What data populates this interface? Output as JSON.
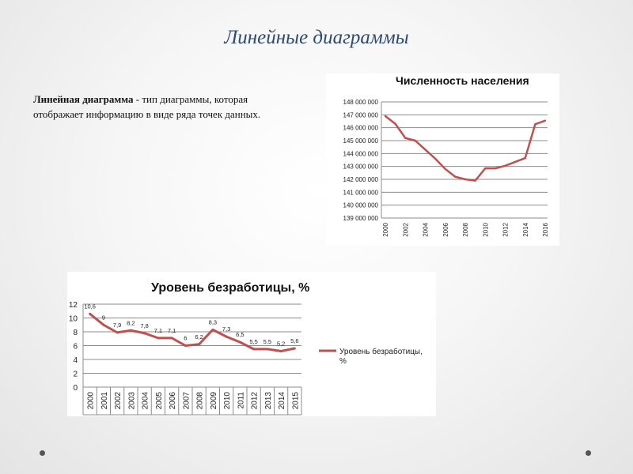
{
  "slide": {
    "title": "Линейные диаграммы",
    "text_term": "Линейная диаграмма",
    "text_rest": " - тип диаграммы, которая отображает информацию в виде ряда точек данных."
  },
  "colors": {
    "line": "#c0504d",
    "title": "#2e4a72"
  },
  "chart_data": [
    {
      "type": "line",
      "title": "Численность населения",
      "x": [
        "2000",
        "2001",
        "2002",
        "2003",
        "2004",
        "2005",
        "2006",
        "2007",
        "2008",
        "2009",
        "2010",
        "2011",
        "2012",
        "2013",
        "2014",
        "2015",
        "2016"
      ],
      "x_tick_labels": [
        "2000",
        "2002",
        "2004",
        "2006",
        "2008",
        "2010",
        "2012",
        "2014",
        "2016"
      ],
      "series": [
        {
          "values": [
            146900000,
            146300000,
            145200000,
            145000000,
            144300000,
            143600000,
            142800000,
            142200000,
            142000000,
            141900000,
            142850000,
            142850000,
            143050000,
            143350000,
            143650000,
            146270000,
            146550000
          ]
        }
      ],
      "ylim": [
        139000000,
        148000000
      ],
      "y_ticks": [
        "148 000 000",
        "147 000 000",
        "146 000 000",
        "145 000 000",
        "144 000 000",
        "143 000 000",
        "142 000 000",
        "141 000 000",
        "140 000 000",
        "139 000 000"
      ],
      "grid": true,
      "legend": "none"
    },
    {
      "type": "line",
      "title": "Уровень безработицы, %",
      "categories": [
        "2000",
        "2001",
        "2002",
        "2003",
        "2004",
        "2005",
        "2006",
        "2007",
        "2008",
        "2009",
        "2010",
        "2011",
        "2012",
        "2013",
        "2014",
        "2015"
      ],
      "series": [
        {
          "name": "Уровень безработицы, %",
          "values": [
            10.6,
            9,
            7.9,
            8.2,
            7.8,
            7.1,
            7.1,
            6,
            6.2,
            8.3,
            7.3,
            6.5,
            5.5,
            5.5,
            5.2,
            5.6
          ],
          "labels": [
            "10,6",
            "9",
            "7,9",
            "8,2",
            "7,8",
            "7,1",
            "7,1",
            "6",
            "6,2",
            "8,3",
            "7,3",
            "6,5",
            "5,5",
            "5,5",
            "5,2",
            "5,6"
          ]
        }
      ],
      "ylim": [
        0,
        12
      ],
      "y_ticks": [
        "12",
        "10",
        "8",
        "6",
        "4",
        "2",
        "0"
      ],
      "grid": true,
      "legend": "right"
    }
  ]
}
